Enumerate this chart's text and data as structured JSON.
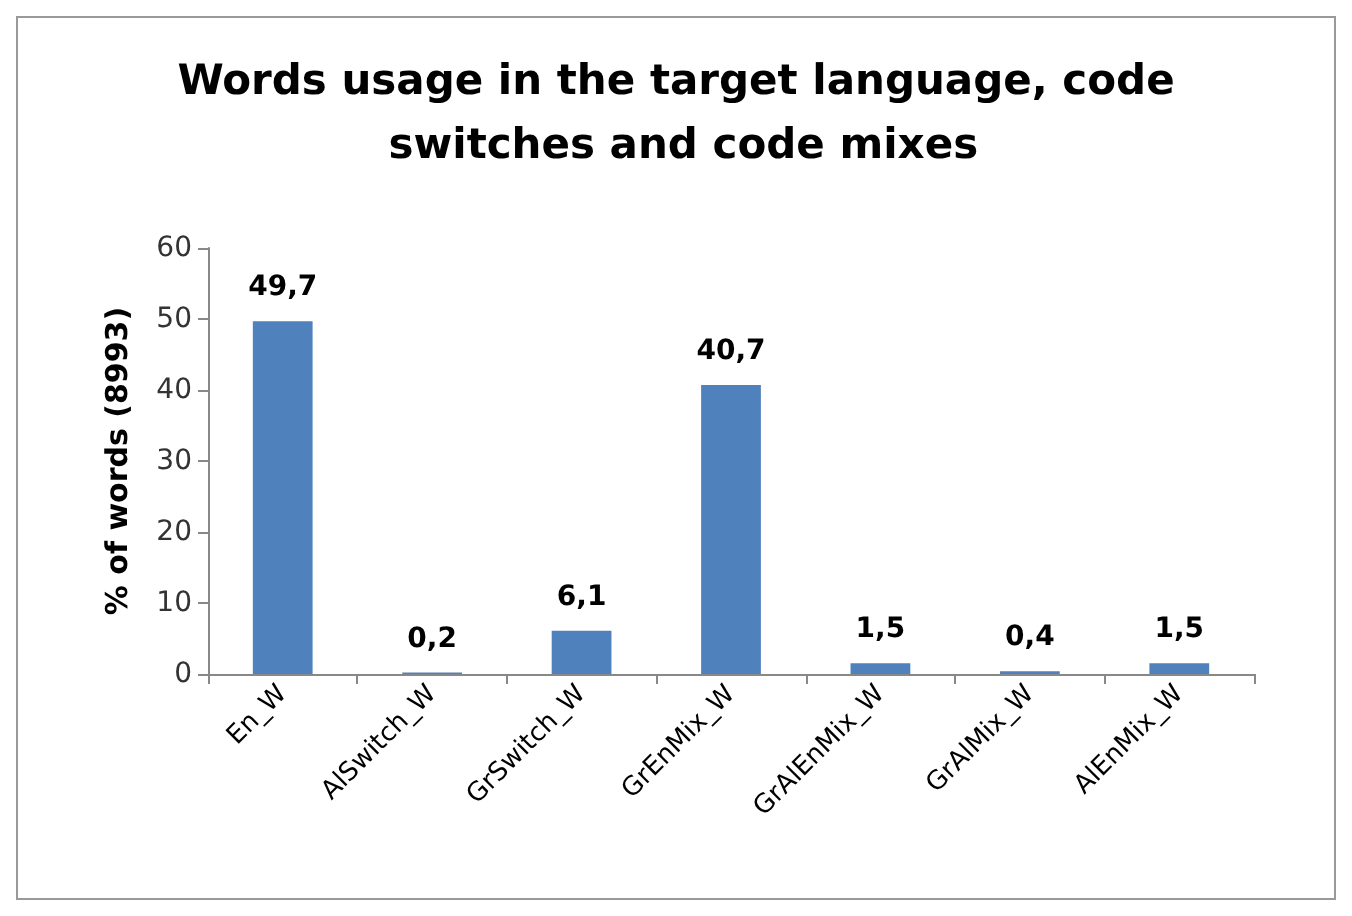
{
  "chart_data": {
    "type": "bar",
    "title": "Words usage in the target language, code switches and code mixes",
    "ylabel": "% of words (8993)",
    "categories": [
      "En_W",
      "AlSwitch_W",
      "GrSwitch_W",
      "GrEnMix_W",
      "GrAlEnMix_W",
      "GrAlMix_W",
      "AlEnMix_W"
    ],
    "values": [
      49.7,
      0.2,
      6.1,
      40.7,
      1.5,
      0.4,
      1.5
    ],
    "value_labels": [
      "49,7",
      "0,2",
      "6,1",
      "40,7",
      "1,5",
      "0,4",
      "1,5"
    ],
    "color": "#4f81bd",
    "ylim": [
      0,
      60
    ],
    "yticks": [
      0,
      10,
      20,
      30,
      40,
      50,
      60
    ],
    "grid": false
  }
}
